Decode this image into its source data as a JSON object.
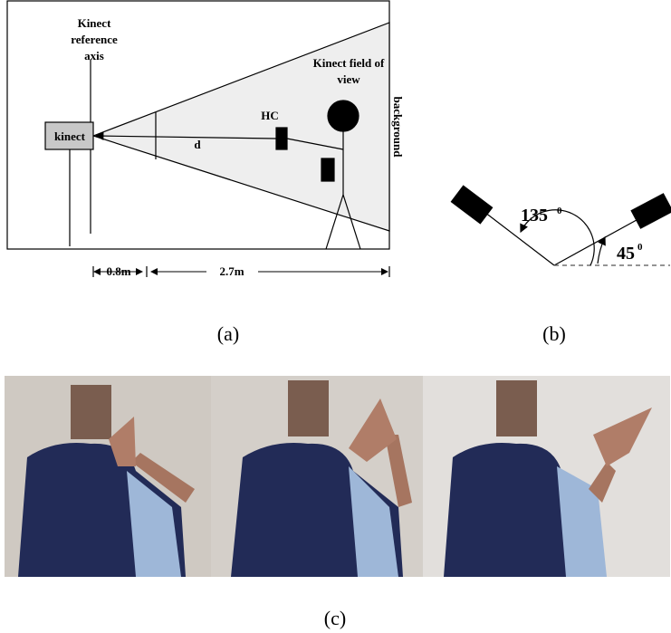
{
  "panel_a": {
    "reference_axis_label": [
      "Kinect",
      "reference",
      "axis"
    ],
    "kinect_label": "kinect",
    "distance_label": "d",
    "hand_label": "HC",
    "field_of_view_label": [
      "Kinect field of",
      "view"
    ],
    "background_label": "background",
    "dimensions": [
      "0.8m",
      "2.7m"
    ],
    "caption": "(a)"
  },
  "panel_b": {
    "angles": [
      {
        "value": 135,
        "unit": "0"
      },
      {
        "value": 45,
        "unit": "0"
      }
    ],
    "caption": "(b)"
  },
  "panel_c": {
    "caption": "(c)"
  }
}
